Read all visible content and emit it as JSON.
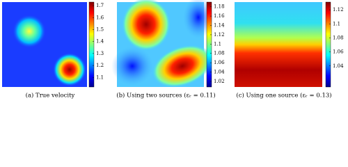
{
  "chart_data": [
    {
      "type": "heatmap",
      "caption": "(a)  True velocity",
      "clim": [
        1.02,
        1.73
      ],
      "cticks": [
        1.1,
        1.2,
        1.3,
        1.4,
        1.5,
        1.6,
        1.7
      ]
    },
    {
      "type": "heatmap",
      "caption": "(b)  Using two sources (εᵣ = 0.11)",
      "clim": [
        1.008,
        1.19
      ],
      "cticks": [
        1.02,
        1.04,
        1.06,
        1.08,
        1.1,
        1.12,
        1.14,
        1.16,
        1.18
      ]
    },
    {
      "type": "heatmap",
      "caption": "(c)  Using one source (εᵣ = 0.13)",
      "clim": [
        1.01,
        1.131
      ],
      "cticks": [
        1.04,
        1.06,
        1.08,
        1.1,
        1.12
      ]
    }
  ]
}
